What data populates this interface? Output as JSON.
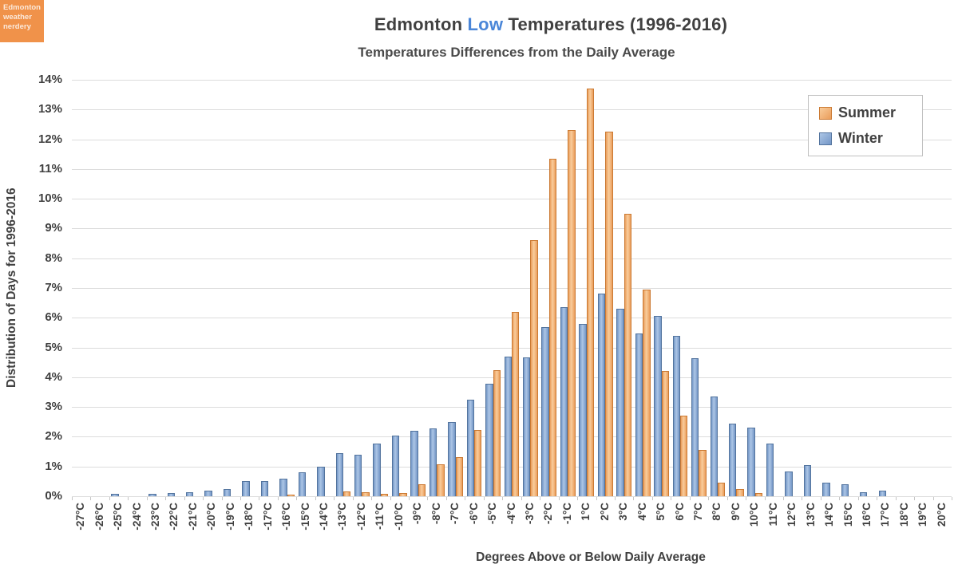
{
  "logo": {
    "lines": [
      "Edmonton",
      "weather",
      "nerdery"
    ],
    "bg_color": "#F0924A"
  },
  "header": {
    "title_prefix": "Edmonton ",
    "title_highlight": "Low",
    "title_suffix": " Temperatures (1996-2016)",
    "highlight_color": "#4A86D8",
    "subtitle": "Temperatures Differences from the Daily Average"
  },
  "legend": {
    "items": [
      {
        "label": "Summer"
      },
      {
        "label": "Winter"
      }
    ]
  },
  "chart_data": {
    "type": "bar",
    "title": "Edmonton Low Temperatures (1996-2016)",
    "subtitle": "Temperatures Differences from the Daily Average",
    "xlabel": "Degrees Above or Below Daily Average",
    "ylabel": "Distribution of Days for 1996-2016",
    "ylim": [
      0,
      14
    ],
    "yticks": [
      "0%",
      "1%",
      "2%",
      "3%",
      "4%",
      "5%",
      "6%",
      "7%",
      "8%",
      "9%",
      "10%",
      "11%",
      "12%",
      "13%",
      "14%"
    ],
    "grid": true,
    "legend_position": "top-right",
    "gridline_color": "#DCDCDC",
    "categories": [
      "-27°C",
      "-26°C",
      "-25°C",
      "-24°C",
      "-23°C",
      "-22°C",
      "-21°C",
      "-20°C",
      "-19°C",
      "-18°C",
      "-17°C",
      "-16°C",
      "-15°C",
      "-14°C",
      "-13°C",
      "-12°C",
      "-11°C",
      "-10°C",
      "-9°C",
      "-8°C",
      "-7°C",
      "-6°C",
      "-5°C",
      "-4°C",
      "-3°C",
      "-2°C",
      "-1°C",
      "1°C",
      "2°C",
      "3°C",
      "4°C",
      "5°C",
      "6°C",
      "7°C",
      "8°C",
      "9°C",
      "10°C",
      "11°C",
      "12°C",
      "13°C",
      "14°C",
      "15°C",
      "16°C",
      "17°C",
      "18°C",
      "19°C",
      "20°C"
    ],
    "series": [
      {
        "name": "Summer",
        "fill_center": "#F9CD9C",
        "fill_edge": "#EA9D5B",
        "border": "#CB7A33",
        "values": [
          0,
          0,
          0,
          0,
          0,
          0,
          0,
          0,
          0,
          0,
          0,
          0.05,
          0,
          0,
          0.15,
          0.13,
          0.08,
          0.1,
          0.4,
          1.08,
          1.32,
          2.22,
          4.25,
          6.2,
          8.6,
          11.35,
          12.3,
          13.7,
          12.25,
          9.5,
          6.95,
          4.2,
          2.7,
          1.55,
          0.45,
          0.25,
          0.1,
          0,
          0,
          0,
          0,
          0,
          0,
          0,
          0,
          0,
          0
        ]
      },
      {
        "name": "Winter",
        "fill_center": "#ADC6E6",
        "fill_edge": "#7396C6",
        "border": "#53749E",
        "values": [
          0,
          0,
          0.08,
          0,
          0.07,
          0.1,
          0.13,
          0.19,
          0.23,
          0.5,
          0.5,
          0.6,
          0.8,
          1.0,
          1.45,
          1.4,
          1.78,
          2.05,
          2.2,
          2.28,
          2.5,
          3.25,
          3.77,
          4.7,
          4.68,
          5.68,
          6.35,
          5.8,
          6.8,
          6.3,
          5.47,
          6.05,
          5.4,
          4.65,
          3.35,
          2.45,
          2.3,
          1.78,
          0.82,
          1.05,
          0.46,
          0.4,
          0.13,
          0.19,
          0,
          0,
          0
        ]
      }
    ],
    "note_bar_order": "winter bar drawn left, summer bar drawn right within each category"
  }
}
